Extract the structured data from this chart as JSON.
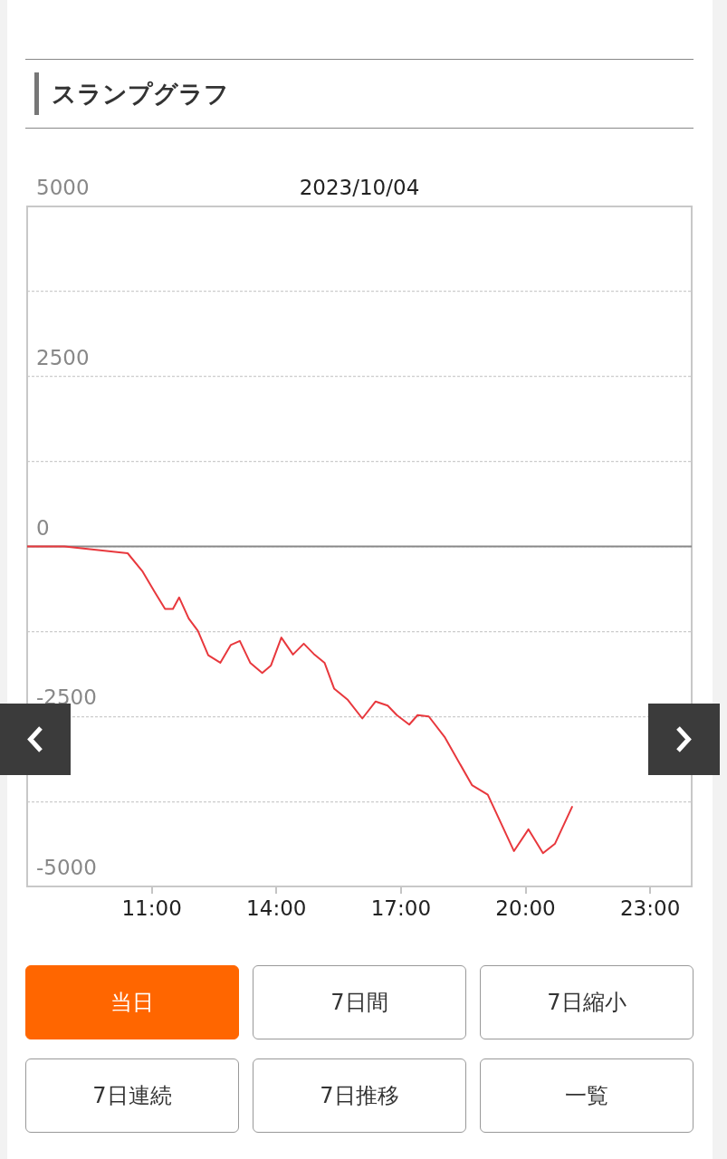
{
  "chart_data": {
    "type": "line",
    "title": "スランプグラフ",
    "subtitle": "2023/10/04",
    "x": [
      8,
      8.9,
      10.42,
      10.77,
      11.07,
      11.32,
      11.51,
      11.66,
      11.89,
      12.11,
      12.36,
      12.65,
      12.9,
      13.12,
      13.37,
      13.66,
      13.87,
      14.12,
      14.4,
      14.66,
      14.9,
      15.16,
      15.39,
      15.71,
      16.07,
      16.39,
      16.68,
      16.9,
      17.2,
      17.4,
      17.67,
      18.05,
      18.71,
      19.09,
      19.72,
      20.07,
      20.42,
      20.71,
      21.12
    ],
    "xlim": [
      8,
      24
    ],
    "xticks": [
      {
        "value": 11,
        "label": "11:00"
      },
      {
        "value": 14,
        "label": "14:00"
      },
      {
        "value": 17,
        "label": "17:00"
      },
      {
        "value": 20,
        "label": "20:00"
      },
      {
        "value": 23,
        "label": "23:00"
      }
    ],
    "ylim": [
      -5000,
      5000
    ],
    "yticks": [
      -5000,
      {
        "value": -3750,
        "label": null
      },
      -2500,
      {
        "value": -1250,
        "label": null
      },
      0,
      {
        "value": 1250,
        "label": null
      },
      2500,
      {
        "value": 3750,
        "label": null
      },
      5000
    ],
    "series": [
      {
        "color": "#e8383d",
        "values": [
          0,
          0,
          -100,
          -360,
          -670,
          -920,
          -920,
          -750,
          -1060,
          -1240,
          -1600,
          -1710,
          -1450,
          -1390,
          -1710,
          -1860,
          -1750,
          -1340,
          -1590,
          -1430,
          -1580,
          -1710,
          -2090,
          -2250,
          -2530,
          -2280,
          -2340,
          -2480,
          -2620,
          -2480,
          -2500,
          -2800,
          -3510,
          -3650,
          -4480,
          -4160,
          -4510,
          -4370,
          -3830
        ]
      }
    ],
    "grid": "y",
    "ref_lines": [
      {
        "axis": "y",
        "value": 0,
        "color": "#888888"
      }
    ],
    "annotations": [
      "当日",
      "7日間",
      "7日縮小",
      "7日連続",
      "7日推移",
      "一覧"
    ]
  }
}
